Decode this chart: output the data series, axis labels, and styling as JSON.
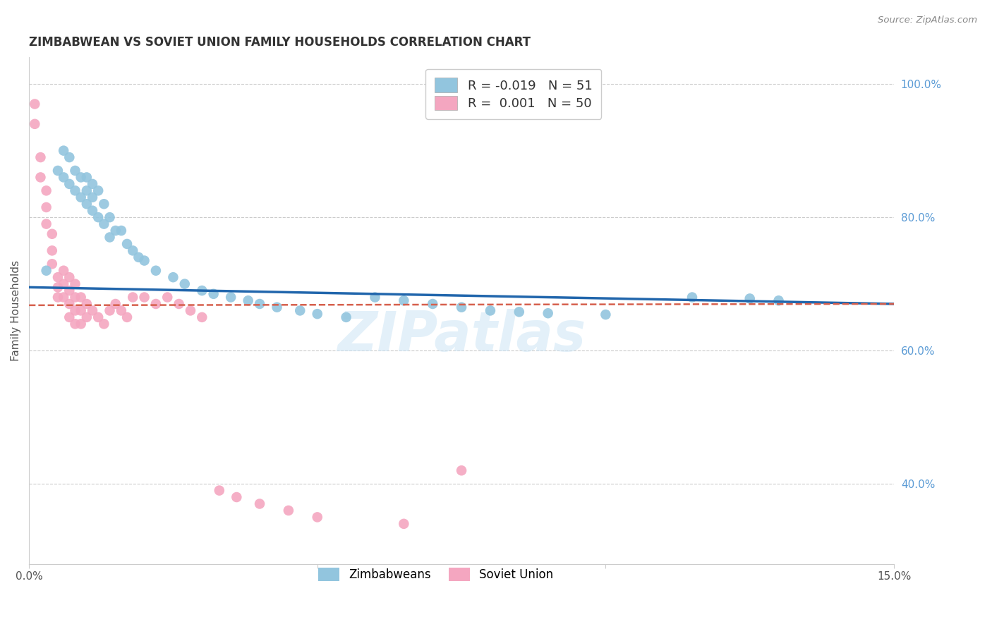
{
  "title": "ZIMBABWEAN VS SOVIET UNION FAMILY HOUSEHOLDS CORRELATION CHART",
  "source": "Source: ZipAtlas.com",
  "ylabel": "Family Households",
  "xlim": [
    0.0,
    0.15
  ],
  "ylim": [
    0.28,
    1.04
  ],
  "xtick_positions": [
    0.0,
    0.05,
    0.1,
    0.15
  ],
  "xtick_labels": [
    "0.0%",
    "",
    "",
    "15.0%"
  ],
  "ytick_labels_right": [
    "100.0%",
    "80.0%",
    "60.0%",
    "40.0%"
  ],
  "ytick_positions_right": [
    1.0,
    0.8,
    0.6,
    0.4
  ],
  "R_zimbabwe": -0.019,
  "N_zimbabwe": 51,
  "R_soviet": 0.001,
  "N_soviet": 50,
  "blue_color": "#92c5de",
  "pink_color": "#f4a6c0",
  "blue_line_color": "#2166ac",
  "pink_line_color": "#d6604d",
  "legend_label_zimbabwe": "Zimbabweans",
  "legend_label_soviet": "Soviet Union",
  "watermark": "ZIPatlas",
  "background_color": "#ffffff",
  "grid_color": "#cccccc",
  "zim_x": [
    0.003,
    0.005,
    0.006,
    0.006,
    0.007,
    0.007,
    0.008,
    0.008,
    0.009,
    0.009,
    0.01,
    0.01,
    0.01,
    0.011,
    0.011,
    0.011,
    0.012,
    0.012,
    0.013,
    0.013,
    0.014,
    0.014,
    0.015,
    0.016,
    0.017,
    0.018,
    0.019,
    0.02,
    0.022,
    0.025,
    0.027,
    0.03,
    0.032,
    0.035,
    0.038,
    0.04,
    0.043,
    0.047,
    0.05,
    0.055,
    0.06,
    0.065,
    0.07,
    0.075,
    0.08,
    0.085,
    0.09,
    0.1,
    0.115,
    0.125,
    0.13
  ],
  "zim_y": [
    0.72,
    0.87,
    0.9,
    0.86,
    0.89,
    0.85,
    0.87,
    0.84,
    0.86,
    0.83,
    0.82,
    0.86,
    0.84,
    0.81,
    0.85,
    0.83,
    0.8,
    0.84,
    0.82,
    0.79,
    0.8,
    0.77,
    0.78,
    0.78,
    0.76,
    0.75,
    0.74,
    0.735,
    0.72,
    0.71,
    0.7,
    0.69,
    0.685,
    0.68,
    0.675,
    0.67,
    0.665,
    0.66,
    0.655,
    0.65,
    0.68,
    0.675,
    0.67,
    0.665,
    0.66,
    0.658,
    0.656,
    0.654,
    0.68,
    0.678,
    0.675
  ],
  "sov_x": [
    0.001,
    0.001,
    0.002,
    0.002,
    0.003,
    0.003,
    0.003,
    0.004,
    0.004,
    0.004,
    0.005,
    0.005,
    0.005,
    0.006,
    0.006,
    0.006,
    0.007,
    0.007,
    0.007,
    0.007,
    0.008,
    0.008,
    0.008,
    0.008,
    0.009,
    0.009,
    0.009,
    0.01,
    0.01,
    0.011,
    0.012,
    0.013,
    0.014,
    0.015,
    0.016,
    0.017,
    0.018,
    0.02,
    0.022,
    0.024,
    0.026,
    0.028,
    0.03,
    0.033,
    0.036,
    0.04,
    0.045,
    0.05,
    0.065,
    0.075
  ],
  "sov_y": [
    0.97,
    0.94,
    0.89,
    0.86,
    0.84,
    0.815,
    0.79,
    0.775,
    0.75,
    0.73,
    0.71,
    0.695,
    0.68,
    0.72,
    0.7,
    0.68,
    0.71,
    0.69,
    0.67,
    0.65,
    0.7,
    0.68,
    0.66,
    0.64,
    0.68,
    0.66,
    0.64,
    0.67,
    0.65,
    0.66,
    0.65,
    0.64,
    0.66,
    0.67,
    0.66,
    0.65,
    0.68,
    0.68,
    0.67,
    0.68,
    0.67,
    0.66,
    0.65,
    0.39,
    0.38,
    0.37,
    0.36,
    0.35,
    0.34,
    0.42
  ],
  "zim_line_x": [
    0.0,
    0.15
  ],
  "zim_line_y": [
    0.695,
    0.67
  ],
  "sov_line_x": [
    0.0,
    0.15
  ],
  "sov_line_y": [
    0.668,
    0.67
  ]
}
